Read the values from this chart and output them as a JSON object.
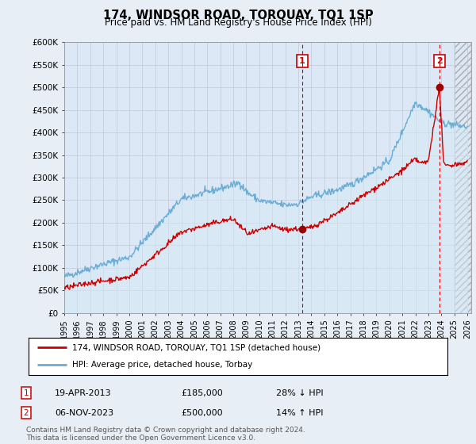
{
  "title": "174, WINDSOR ROAD, TORQUAY, TQ1 1SP",
  "subtitle": "Price paid vs. HM Land Registry's House Price Index (HPI)",
  "ylabel_ticks": [
    "£0",
    "£50K",
    "£100K",
    "£150K",
    "£200K",
    "£250K",
    "£300K",
    "£350K",
    "£400K",
    "£450K",
    "£500K",
    "£550K",
    "£600K"
  ],
  "ytick_vals": [
    0,
    50000,
    100000,
    150000,
    200000,
    250000,
    300000,
    350000,
    400000,
    450000,
    500000,
    550000,
    600000
  ],
  "ylim": [
    0,
    600000
  ],
  "xlim_start": 1995.0,
  "xlim_end": 2026.3,
  "xticks": [
    1995,
    1996,
    1997,
    1998,
    1999,
    2000,
    2001,
    2002,
    2003,
    2004,
    2005,
    2006,
    2007,
    2008,
    2009,
    2010,
    2011,
    2012,
    2013,
    2014,
    2015,
    2016,
    2017,
    2018,
    2019,
    2020,
    2021,
    2022,
    2023,
    2024,
    2025,
    2026
  ],
  "hpi_color": "#6aaed6",
  "hpi_fill_color": "#d6e8f5",
  "price_color": "#cc0000",
  "marker_color": "#990000",
  "dashed_line_color": "#cc0000",
  "transaction1_x": 2013.3,
  "transaction1_y": 185000,
  "transaction1_date": "19-APR-2013",
  "transaction1_price": "£185,000",
  "transaction1_pct": "28% ↓ HPI",
  "transaction2_x": 2023.85,
  "transaction2_y": 500000,
  "transaction2_date": "06-NOV-2023",
  "transaction2_price": "£500,000",
  "transaction2_pct": "14% ↑ HPI",
  "legend_line1": "174, WINDSOR ROAD, TORQUAY, TQ1 1SP (detached house)",
  "legend_line2": "HPI: Average price, detached house, Torbay",
  "footer": "Contains HM Land Registry data © Crown copyright and database right 2024.\nThis data is licensed under the Open Government Licence v3.0.",
  "background_color": "#e8eef5",
  "plot_bg_color": "#dce8f5"
}
